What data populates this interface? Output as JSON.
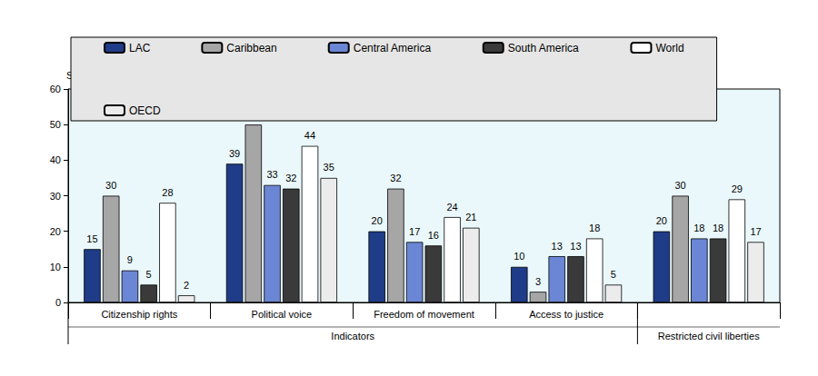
{
  "chart_data": {
    "type": "bar",
    "y_label": "SIGI score",
    "categories": [
      "Citizenship rights",
      "Political voice",
      "Freedom of movement",
      "Access to justice",
      null
    ],
    "category_groups": [
      {
        "label": "Indicators",
        "span": 4
      },
      {
        "label": "Restricted civil liberties",
        "span": 1
      }
    ],
    "series": [
      {
        "name": "LAC",
        "color": "#1f3c88",
        "values": [
          15,
          39,
          20,
          10,
          20
        ]
      },
      {
        "name": "Caribbean",
        "color": "#a6a6a6",
        "values": [
          30,
          50,
          32,
          3,
          30
        ]
      },
      {
        "name": "Central America",
        "color": "#6a86d4",
        "values": [
          9,
          33,
          17,
          13,
          18
        ]
      },
      {
        "name": "South America",
        "color": "#3a3a3a",
        "values": [
          5,
          32,
          16,
          13,
          18
        ]
      },
      {
        "name": "World",
        "color": "#ffffff",
        "values": [
          28,
          44,
          24,
          18,
          29
        ]
      },
      {
        "name": "OECD",
        "color": "#ececec",
        "values": [
          2,
          35,
          21,
          5,
          17
        ]
      }
    ],
    "ylim": [
      0,
      60
    ],
    "yticks": [
      0,
      10,
      20,
      30,
      40,
      50,
      60
    ],
    "grid": false,
    "legend": "top",
    "data_labels": true
  }
}
